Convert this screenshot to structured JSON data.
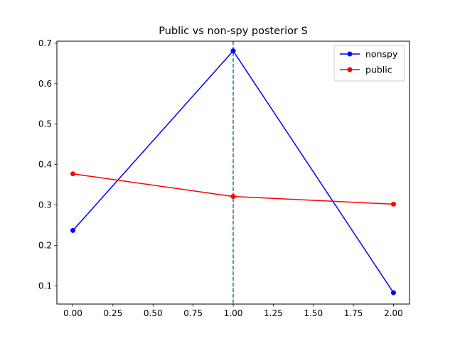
{
  "chart_data": {
    "type": "line",
    "title": "Public vs non-spy posterior S",
    "xlabel": "",
    "ylabel": "",
    "xlim": [
      -0.1,
      2.1
    ],
    "ylim": [
      0.055,
      0.705
    ],
    "x_ticks": [
      0.0,
      0.25,
      0.5,
      0.75,
      1.0,
      1.25,
      1.5,
      1.75,
      2.0
    ],
    "x_tick_labels": [
      "0.00",
      "0.25",
      "0.50",
      "0.75",
      "1.00",
      "1.25",
      "1.50",
      "1.75",
      "2.00"
    ],
    "y_ticks": [
      0.1,
      0.2,
      0.3,
      0.4,
      0.5,
      0.6,
      0.7
    ],
    "y_tick_labels": [
      "0.1",
      "0.2",
      "0.3",
      "0.4",
      "0.5",
      "0.6",
      "0.7"
    ],
    "grid": false,
    "legend_position": "upper right",
    "x": [
      0,
      1,
      2
    ],
    "series": [
      {
        "name": "nonspy",
        "color": "#0000ff",
        "marker": "circle",
        "values": [
          0.237,
          0.681,
          0.083
        ]
      },
      {
        "name": "public",
        "color": "#ff0000",
        "marker": "circle",
        "values": [
          0.377,
          0.321,
          0.302
        ]
      }
    ],
    "vertical_line": {
      "x": 1.0,
      "style": "dashed",
      "color": "#1f77b4"
    }
  }
}
